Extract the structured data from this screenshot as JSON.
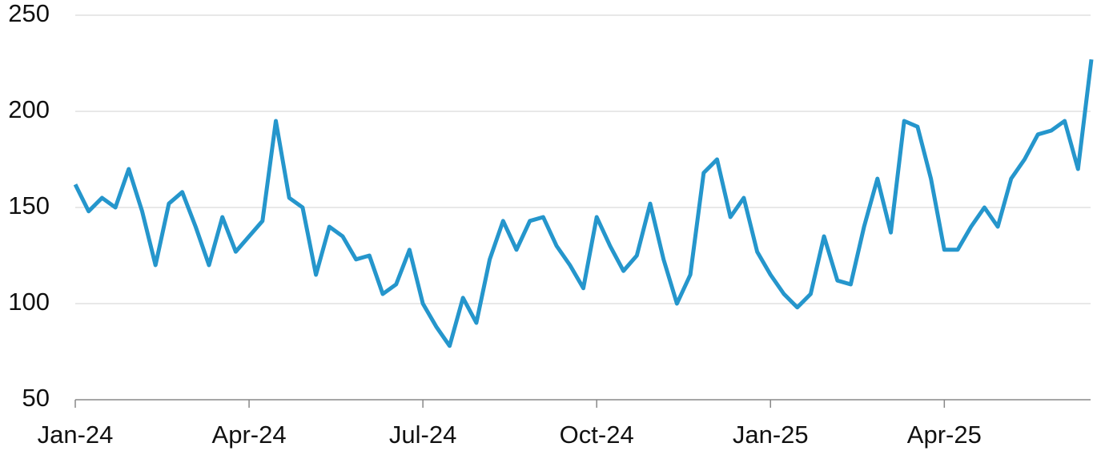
{
  "chart_data": {
    "type": "line",
    "categories": [
      "Jan-24",
      null,
      null,
      null,
      null,
      null,
      null,
      null,
      null,
      null,
      null,
      null,
      null,
      "Apr-24",
      null,
      null,
      null,
      null,
      null,
      null,
      null,
      null,
      null,
      null,
      null,
      null,
      "Jul-24",
      null,
      null,
      null,
      null,
      null,
      null,
      null,
      null,
      null,
      null,
      null,
      null,
      "Oct-24",
      null,
      null,
      null,
      null,
      null,
      null,
      null,
      null,
      null,
      null,
      null,
      null,
      "Jan-25",
      null,
      null,
      null,
      null,
      null,
      null,
      null,
      null,
      null,
      null,
      null,
      null,
      "Apr-25",
      null,
      null,
      null,
      null,
      null,
      null,
      null,
      null,
      null,
      null,
      null
    ],
    "series": [
      {
        "color": "#2596cc",
        "values": [
          162,
          148,
          155,
          150,
          170,
          148,
          120,
          152,
          158,
          140,
          120,
          145,
          127,
          135,
          143,
          195,
          155,
          150,
          115,
          140,
          135,
          123,
          125,
          105,
          110,
          128,
          100,
          88,
          78,
          103,
          90,
          123,
          143,
          128,
          143,
          145,
          130,
          120,
          108,
          145,
          130,
          117,
          125,
          152,
          123,
          100,
          115,
          168,
          175,
          145,
          155,
          127,
          115,
          105,
          98,
          105,
          135,
          112,
          110,
          140,
          165,
          137,
          195,
          192,
          165,
          128,
          128,
          140,
          150,
          140,
          165,
          175,
          188,
          190,
          195,
          170,
          227
        ]
      }
    ],
    "ylim": [
      50,
      250
    ],
    "yticks": [
      50,
      100,
      150,
      200,
      250
    ],
    "grid": true
  }
}
